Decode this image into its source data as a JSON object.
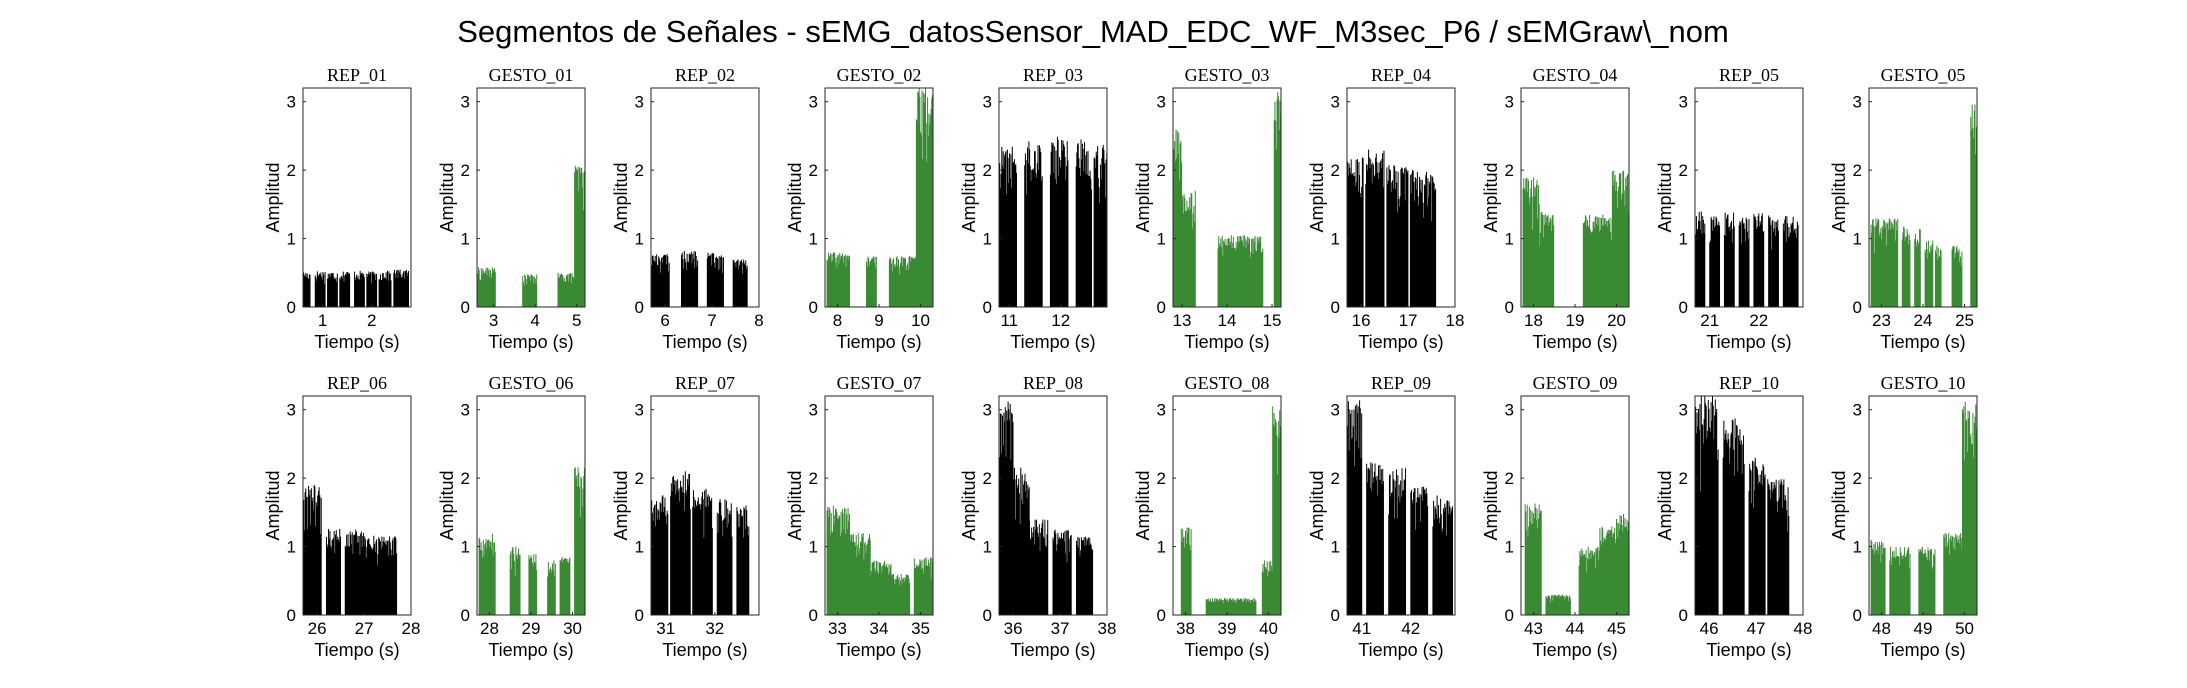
{
  "figure": {
    "title": "Segmentos de Señales - sEMG_datosSensor_MAD_EDC_WF_M3sec_P6 / sEMGraw\\_nom"
  },
  "colors": {
    "rep": "#000000",
    "gesto": "#3a8a33"
  },
  "chart_data": [
    {
      "type": "area",
      "title": "REP_01",
      "xlabel": "Tiempo (s)",
      "ylabel": "Amplitud",
      "xlim": [
        0.6,
        2.8
      ],
      "xticks": [
        1,
        2
      ],
      "ylim": [
        0,
        3.2
      ],
      "yticks": [
        0,
        1,
        2,
        3
      ],
      "color": "#000000",
      "bursts": [
        [
          0.6,
          0.75,
          0.52
        ],
        [
          0.85,
          1.05,
          0.53
        ],
        [
          1.1,
          1.3,
          0.52
        ],
        [
          1.35,
          1.55,
          0.53
        ],
        [
          1.65,
          1.85,
          0.53
        ],
        [
          1.9,
          2.1,
          0.52
        ],
        [
          2.15,
          2.4,
          0.53
        ],
        [
          2.45,
          2.75,
          0.55
        ]
      ]
    },
    {
      "type": "area",
      "title": "GESTO_01",
      "xlabel": "Tiempo (s)",
      "ylabel": "Amplitud",
      "xlim": [
        2.6,
        5.2
      ],
      "xticks": [
        3,
        4,
        5
      ],
      "ylim": [
        0,
        3.2
      ],
      "yticks": [
        0,
        1,
        2,
        3
      ],
      "color": "#3a8a33",
      "bursts": [
        [
          2.62,
          3.05,
          0.58
        ],
        [
          3.7,
          4.05,
          0.48
        ],
        [
          4.55,
          4.95,
          0.5
        ],
        [
          4.95,
          5.2,
          2.1
        ]
      ]
    },
    {
      "type": "area",
      "title": "REP_02",
      "xlabel": "Tiempo (s)",
      "ylabel": "Amplitud",
      "xlim": [
        5.7,
        8.0
      ],
      "xticks": [
        6,
        7,
        8
      ],
      "ylim": [
        0,
        3.2
      ],
      "yticks": [
        0,
        1,
        2,
        3
      ],
      "color": "#000000",
      "bursts": [
        [
          5.7,
          6.1,
          0.78
        ],
        [
          6.35,
          6.7,
          0.82
        ],
        [
          6.9,
          7.25,
          0.8
        ],
        [
          7.45,
          7.75,
          0.7
        ]
      ]
    },
    {
      "type": "area",
      "title": "GESTO_02",
      "xlabel": "Tiempo (s)",
      "ylabel": "Amplitud",
      "xlim": [
        7.7,
        10.3
      ],
      "xticks": [
        8,
        9,
        10
      ],
      "ylim": [
        0,
        3.2
      ],
      "yticks": [
        0,
        1,
        2,
        3
      ],
      "color": "#3a8a33",
      "bursts": [
        [
          7.75,
          8.3,
          0.8
        ],
        [
          8.7,
          8.95,
          0.75
        ],
        [
          9.25,
          9.9,
          0.75
        ],
        [
          9.9,
          10.3,
          3.2
        ]
      ]
    },
    {
      "type": "area",
      "title": "REP_03",
      "xlabel": "Tiempo (s)",
      "ylabel": "Amplitud",
      "xlim": [
        10.8,
        12.9
      ],
      "xticks": [
        11,
        12
      ],
      "ylim": [
        0,
        3.2
      ],
      "yticks": [
        0,
        1,
        2,
        3
      ],
      "color": "#000000",
      "bursts": [
        [
          10.8,
          11.15,
          2.35
        ],
        [
          11.3,
          11.65,
          2.45
        ],
        [
          11.8,
          12.15,
          2.5
        ],
        [
          12.3,
          12.6,
          2.5
        ],
        [
          12.65,
          12.9,
          2.4
        ]
      ]
    },
    {
      "type": "area",
      "title": "GESTO_03",
      "xlabel": "Tiempo (s)",
      "ylabel": "Amplitud",
      "xlim": [
        12.8,
        15.2
      ],
      "xticks": [
        13,
        14,
        15
      ],
      "ylim": [
        0,
        3.2
      ],
      "yticks": [
        0,
        1,
        2,
        3
      ],
      "color": "#3a8a33",
      "bursts": [
        [
          12.82,
          13.0,
          2.6
        ],
        [
          13.0,
          13.3,
          1.7
        ],
        [
          13.8,
          14.8,
          1.05
        ],
        [
          15.05,
          15.2,
          3.15
        ]
      ]
    },
    {
      "type": "area",
      "title": "REP_04",
      "xlabel": "Tiempo (s)",
      "ylabel": "Amplitud",
      "xlim": [
        15.7,
        18.0
      ],
      "xticks": [
        16,
        17,
        18
      ],
      "ylim": [
        0,
        3.2
      ],
      "yticks": [
        0,
        1,
        2,
        3
      ],
      "color": "#000000",
      "bursts": [
        [
          15.7,
          16.05,
          2.2
        ],
        [
          16.1,
          16.5,
          2.3
        ],
        [
          16.55,
          17.0,
          2.1
        ],
        [
          17.05,
          17.6,
          2.0
        ]
      ]
    },
    {
      "type": "area",
      "title": "GESTO_04",
      "xlabel": "Tiempo (s)",
      "ylabel": "Amplitud",
      "xlim": [
        17.7,
        20.3
      ],
      "xticks": [
        18,
        19,
        20
      ],
      "ylim": [
        0,
        3.2
      ],
      "yticks": [
        0,
        1,
        2,
        3
      ],
      "color": "#3a8a33",
      "bursts": [
        [
          17.75,
          18.15,
          1.9
        ],
        [
          18.15,
          18.5,
          1.4
        ],
        [
          19.2,
          19.9,
          1.35
        ],
        [
          19.9,
          20.3,
          2.0
        ]
      ]
    },
    {
      "type": "area",
      "title": "REP_05",
      "xlabel": "Tiempo (s)",
      "ylabel": "Amplitud",
      "xlim": [
        20.7,
        22.9
      ],
      "xticks": [
        21,
        22
      ],
      "ylim": [
        0,
        3.2
      ],
      "yticks": [
        0,
        1,
        2,
        3
      ],
      "color": "#000000",
      "bursts": [
        [
          20.7,
          20.9,
          1.4
        ],
        [
          21.0,
          21.2,
          1.35
        ],
        [
          21.3,
          21.5,
          1.38
        ],
        [
          21.6,
          21.8,
          1.35
        ],
        [
          21.9,
          22.1,
          1.37
        ],
        [
          22.2,
          22.4,
          1.35
        ],
        [
          22.5,
          22.8,
          1.35
        ]
      ]
    },
    {
      "type": "area",
      "title": "GESTO_05",
      "xlabel": "Tiempo (s)",
      "ylabel": "Amplitud",
      "xlim": [
        22.7,
        25.3
      ],
      "xticks": [
        23,
        24,
        25
      ],
      "ylim": [
        0,
        3.2
      ],
      "yticks": [
        0,
        1,
        2,
        3
      ],
      "color": "#3a8a33",
      "bursts": [
        [
          22.75,
          23.4,
          1.3
        ],
        [
          23.5,
          23.7,
          1.2
        ],
        [
          23.8,
          23.95,
          1.15
        ],
        [
          24.05,
          24.25,
          1.0
        ],
        [
          24.3,
          24.45,
          0.9
        ],
        [
          24.7,
          24.95,
          0.9
        ],
        [
          25.15,
          25.3,
          3.0
        ]
      ]
    },
    {
      "type": "area",
      "title": "REP_06",
      "xlabel": "Tiempo (s)",
      "ylabel": "Amplitud",
      "xlim": [
        25.7,
        28.0
      ],
      "xticks": [
        26,
        27,
        28
      ],
      "ylim": [
        0,
        3.2
      ],
      "yticks": [
        0,
        1,
        2,
        3
      ],
      "color": "#000000",
      "bursts": [
        [
          25.7,
          26.1,
          1.9
        ],
        [
          26.2,
          26.5,
          1.3
        ],
        [
          26.6,
          27.0,
          1.25
        ],
        [
          27.0,
          27.35,
          1.2
        ],
        [
          27.35,
          27.7,
          1.15
        ]
      ]
    },
    {
      "type": "area",
      "title": "GESTO_06",
      "xlabel": "Tiempo (s)",
      "ylabel": "Amplitud",
      "xlim": [
        27.7,
        30.3
      ],
      "xticks": [
        28,
        29,
        30
      ],
      "ylim": [
        0,
        3.2
      ],
      "yticks": [
        0,
        1,
        2,
        3
      ],
      "color": "#3a8a33",
      "bursts": [
        [
          27.75,
          28.15,
          1.2
        ],
        [
          28.5,
          28.75,
          1.0
        ],
        [
          28.95,
          29.15,
          0.9
        ],
        [
          29.4,
          29.6,
          0.8
        ],
        [
          29.7,
          29.95,
          0.85
        ],
        [
          30.05,
          30.3,
          2.2
        ]
      ]
    },
    {
      "type": "area",
      "title": "REP_07",
      "xlabel": "Tiempo (s)",
      "ylabel": "Amplitud",
      "xlim": [
        30.7,
        32.9
      ],
      "xticks": [
        31,
        32
      ],
      "ylim": [
        0,
        3.2
      ],
      "yticks": [
        0,
        1,
        2,
        3
      ],
      "color": "#000000",
      "bursts": [
        [
          30.7,
          31.05,
          1.75
        ],
        [
          31.1,
          31.5,
          2.1
        ],
        [
          31.55,
          31.95,
          1.85
        ],
        [
          32.05,
          32.35,
          1.7
        ],
        [
          32.45,
          32.7,
          1.6
        ]
      ]
    },
    {
      "type": "area",
      "title": "GESTO_07",
      "xlabel": "Tiempo (s)",
      "ylabel": "Amplitud",
      "xlim": [
        32.7,
        35.3
      ],
      "xticks": [
        33,
        34,
        35
      ],
      "ylim": [
        0,
        3.2
      ],
      "yticks": [
        0,
        1,
        2,
        3
      ],
      "color": "#3a8a33",
      "bursts": [
        [
          32.75,
          33.3,
          1.6
        ],
        [
          33.3,
          33.8,
          1.2
        ],
        [
          33.8,
          34.3,
          0.8
        ],
        [
          34.3,
          34.75,
          0.6
        ],
        [
          34.85,
          35.3,
          0.85
        ]
      ]
    },
    {
      "type": "area",
      "title": "REP_08",
      "xlabel": "Tiempo (s)",
      "ylabel": "Amplitud",
      "xlim": [
        35.7,
        38.0
      ],
      "xticks": [
        36,
        37,
        38
      ],
      "ylim": [
        0,
        3.2
      ],
      "yticks": [
        0,
        1,
        2,
        3
      ],
      "color": "#000000",
      "bursts": [
        [
          35.7,
          36.0,
          3.15
        ],
        [
          36.0,
          36.35,
          2.2
        ],
        [
          36.35,
          36.75,
          1.4
        ],
        [
          36.85,
          37.25,
          1.25
        ],
        [
          37.35,
          37.7,
          1.15
        ]
      ]
    },
    {
      "type": "area",
      "title": "GESTO_08",
      "xlabel": "Tiempo (s)",
      "ylabel": "Amplitud",
      "xlim": [
        37.7,
        40.3
      ],
      "xticks": [
        38,
        39,
        40
      ],
      "ylim": [
        0,
        3.2
      ],
      "yticks": [
        0,
        1,
        2,
        3
      ],
      "color": "#3a8a33",
      "bursts": [
        [
          37.9,
          38.15,
          1.3
        ],
        [
          38.5,
          39.7,
          0.25
        ],
        [
          39.85,
          40.1,
          0.8
        ],
        [
          40.1,
          40.3,
          3.15
        ]
      ]
    },
    {
      "type": "area",
      "title": "REP_09",
      "xlabel": "Tiempo (s)",
      "ylabel": "Amplitud",
      "xlim": [
        40.7,
        42.9
      ],
      "xticks": [
        41,
        42
      ],
      "ylim": [
        0,
        3.2
      ],
      "yticks": [
        0,
        1,
        2,
        3
      ],
      "color": "#000000",
      "bursts": [
        [
          40.7,
          41.0,
          3.15
        ],
        [
          41.1,
          41.45,
          2.25
        ],
        [
          41.55,
          41.9,
          2.15
        ],
        [
          42.0,
          42.35,
          1.9
        ],
        [
          42.45,
          42.85,
          1.75
        ]
      ]
    },
    {
      "type": "area",
      "title": "GESTO_09",
      "xlabel": "Tiempo (s)",
      "ylabel": "Amplitud",
      "xlim": [
        42.7,
        45.3
      ],
      "xticks": [
        43,
        44,
        45
      ],
      "ylim": [
        0,
        3.2
      ],
      "yticks": [
        0,
        1,
        2,
        3
      ],
      "color": "#3a8a33",
      "bursts": [
        [
          42.8,
          43.2,
          1.65
        ],
        [
          43.3,
          43.9,
          0.3
        ],
        [
          44.1,
          44.6,
          1.0
        ],
        [
          44.6,
          45.0,
          1.3
        ],
        [
          45.0,
          45.3,
          1.55
        ]
      ]
    },
    {
      "type": "area",
      "title": "REP_10",
      "xlabel": "Tiempo (s)",
      "ylabel": "Amplitud",
      "xlim": [
        45.7,
        48.0
      ],
      "xticks": [
        46,
        47,
        48
      ],
      "ylim": [
        0,
        3.2
      ],
      "yticks": [
        0,
        1,
        2,
        3
      ],
      "color": "#000000",
      "bursts": [
        [
          45.7,
          46.2,
          3.2
        ],
        [
          46.3,
          46.75,
          2.9
        ],
        [
          46.85,
          47.2,
          2.3
        ],
        [
          47.25,
          47.7,
          2.0
        ]
      ]
    },
    {
      "type": "area",
      "title": "GESTO_10",
      "xlabel": "Tiempo (s)",
      "ylabel": "Amplitud",
      "xlim": [
        47.7,
        50.3
      ],
      "xticks": [
        48,
        49,
        50
      ],
      "ylim": [
        0,
        3.2
      ],
      "yticks": [
        0,
        1,
        2,
        3
      ],
      "color": "#3a8a33",
      "bursts": [
        [
          47.75,
          48.1,
          1.1
        ],
        [
          48.2,
          48.7,
          1.0
        ],
        [
          48.9,
          49.3,
          1.0
        ],
        [
          49.5,
          49.95,
          1.2
        ],
        [
          49.95,
          50.3,
          3.15
        ]
      ]
    }
  ]
}
